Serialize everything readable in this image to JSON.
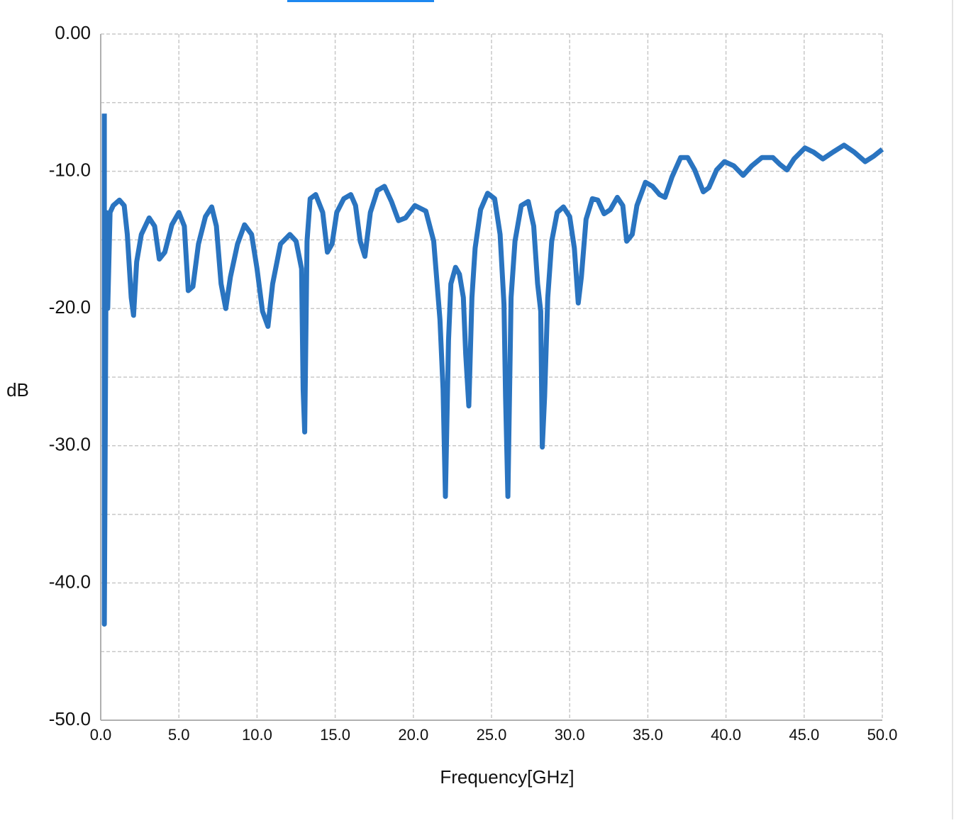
{
  "chart_data": {
    "type": "line",
    "ylabel": "dB",
    "xlabel": "Frequency[GHz]",
    "color": "#2a74c0",
    "grid": true,
    "xlim": [
      0,
      50
    ],
    "ylim": [
      -50,
      0
    ],
    "xticks": [
      {
        "value": 0,
        "label": "0.0"
      },
      {
        "value": 5,
        "label": "5.0"
      },
      {
        "value": 10,
        "label": "10.0"
      },
      {
        "value": 15,
        "label": "15.0"
      },
      {
        "value": 20,
        "label": "20.0"
      },
      {
        "value": 25,
        "label": "25.0"
      },
      {
        "value": 30,
        "label": "30.0"
      },
      {
        "value": 35,
        "label": "35.0"
      },
      {
        "value": 40,
        "label": "40.0"
      },
      {
        "value": 45,
        "label": "45.0"
      },
      {
        "value": 50,
        "label": "50.0"
      }
    ],
    "yticks": [
      {
        "value": 0,
        "label": "0.00"
      },
      {
        "value": -10,
        "label": "-10.0"
      },
      {
        "value": -20,
        "label": "-20.0"
      },
      {
        "value": -30,
        "label": "-30.0"
      },
      {
        "value": -40,
        "label": "-40.0"
      },
      {
        "value": -50,
        "label": "-50.0"
      }
    ],
    "yminor": [
      -5,
      -15,
      -25,
      -35,
      -45
    ],
    "x": [
      0.23,
      0.23,
      0.36,
      0.45,
      0.6,
      0.8,
      1.2,
      1.5,
      1.7,
      1.95,
      2.1,
      2.3,
      2.6,
      3.1,
      3.45,
      3.75,
      4.1,
      4.55,
      5.0,
      5.35,
      5.6,
      5.9,
      6.25,
      6.7,
      7.1,
      7.4,
      7.7,
      8.0,
      8.3,
      8.75,
      9.2,
      9.65,
      10.0,
      10.35,
      10.7,
      11.0,
      11.5,
      12.1,
      12.5,
      12.85,
      12.95,
      13.05,
      13.2,
      13.4,
      13.75,
      14.2,
      14.5,
      14.8,
      15.1,
      15.55,
      16.0,
      16.3,
      16.6,
      16.9,
      17.25,
      17.7,
      18.15,
      18.6,
      19.05,
      19.5,
      20.1,
      20.8,
      21.3,
      21.7,
      21.9,
      22.05,
      22.25,
      22.4,
      22.7,
      22.95,
      23.2,
      23.35,
      23.55,
      23.75,
      23.95,
      24.3,
      24.75,
      25.2,
      25.55,
      25.8,
      25.9,
      26.05,
      26.25,
      26.5,
      26.9,
      27.35,
      27.7,
      27.95,
      28.15,
      28.25,
      28.4,
      28.6,
      28.85,
      29.2,
      29.6,
      30.0,
      30.3,
      30.55,
      30.75,
      31.05,
      31.45,
      31.8,
      32.2,
      32.6,
      33.05,
      33.4,
      33.65,
      34.0,
      34.3,
      34.85,
      35.3,
      35.75,
      36.1,
      36.55,
      37.1,
      37.55,
      38.0,
      38.55,
      38.9,
      39.4,
      39.9,
      40.5,
      41.1,
      41.65,
      42.3,
      43.0,
      43.45,
      43.9,
      44.35,
      45.05,
      45.6,
      46.2,
      46.85,
      47.55,
      48.2,
      48.9,
      49.45,
      50.0
    ],
    "values": [
      -5.8,
      -43,
      -13,
      -20,
      -13,
      -12.5,
      -12.1,
      -12.5,
      -14.6,
      -19.2,
      -20.5,
      -16.6,
      -14.6,
      -13.4,
      -14,
      -16.4,
      -15.9,
      -13.9,
      -13,
      -14,
      -18.7,
      -18.4,
      -15.3,
      -13.3,
      -12.6,
      -14,
      -18.2,
      -20,
      -17.7,
      -15.3,
      -13.9,
      -14.6,
      -17.1,
      -20.2,
      -21.3,
      -18.2,
      -15.3,
      -14.6,
      -15.1,
      -17.1,
      -25.9,
      -29,
      -15.1,
      -12,
      -11.7,
      -13,
      -15.9,
      -15.3,
      -13,
      -12,
      -11.7,
      -12.5,
      -15.1,
      -16.2,
      -13,
      -11.4,
      -11.1,
      -12.2,
      -13.6,
      -13.4,
      -12.5,
      -12.9,
      -15.1,
      -20.8,
      -25.9,
      -33.7,
      -22.3,
      -18.2,
      -17,
      -17.5,
      -19.2,
      -23.3,
      -27.1,
      -19.2,
      -15.6,
      -12.8,
      -11.6,
      -12,
      -14.6,
      -19.7,
      -26.4,
      -33.7,
      -19.2,
      -15.1,
      -12.5,
      -12.2,
      -14,
      -18.2,
      -20.2,
      -30.1,
      -26.4,
      -19.2,
      -15.1,
      -13,
      -12.6,
      -13.3,
      -15.6,
      -19.6,
      -17.7,
      -13.5,
      -12,
      -12.1,
      -13.1,
      -12.8,
      -11.9,
      -12.5,
      -15.1,
      -14.6,
      -12.5,
      -10.8,
      -11.1,
      -11.7,
      -11.9,
      -10.4,
      -9,
      -9,
      -9.9,
      -11.5,
      -11.2,
      -9.9,
      -9.3,
      -9.6,
      -10.3,
      -9.6,
      -9,
      -9,
      -9.5,
      -9.9,
      -9.1,
      -8.3,
      -8.6,
      -9.1,
      -8.6,
      -8.1,
      -8.6,
      -9.3,
      -8.9,
      -8.4
    ]
  }
}
